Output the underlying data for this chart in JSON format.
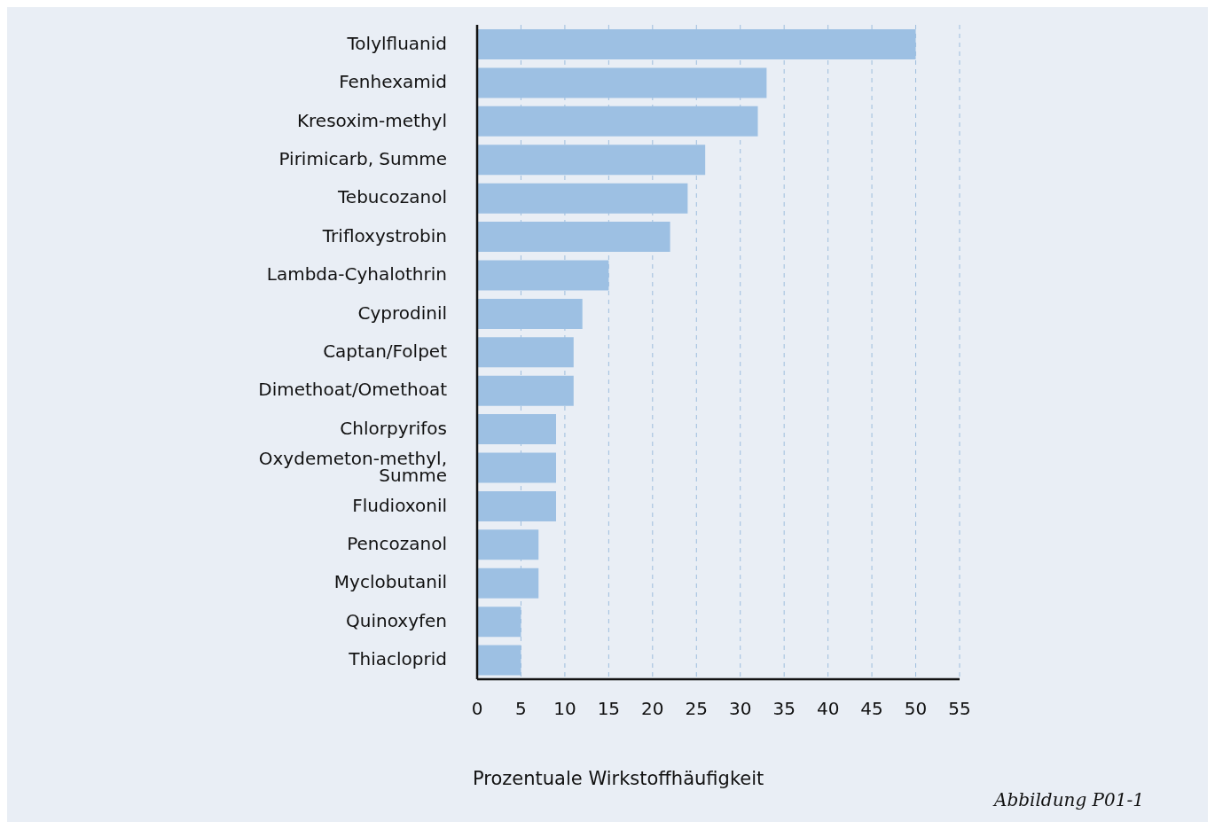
{
  "chart_data": {
    "type": "bar",
    "orientation": "horizontal",
    "xlabel": "Prozentuale Wirkstoffhäufigkeit",
    "categories": [
      "Tolylfluanid",
      "Fenhexamid",
      "Kresoxim-methyl",
      "Pirimicarb, Summe",
      "Tebucozanol",
      "Trifloxystrobin",
      "Lambda-Cyhalothrin",
      "Cyprodinil",
      "Captan/Folpet",
      "Dimethoat/Omethoat",
      "Chlorpyrifos",
      "Oxydemeton-methyl, Summe",
      "Fludioxonil",
      "Pencozanol",
      "Myclobutanil",
      "Quinoxyfen",
      "Thiacloprid"
    ],
    "values": [
      50,
      33,
      32,
      26,
      24,
      22,
      15,
      12,
      11,
      11,
      9,
      9,
      9,
      7,
      7,
      5,
      5
    ],
    "color": "#9dc0e3",
    "xlim": [
      0,
      55
    ],
    "xticks": [
      0,
      5,
      10,
      15,
      20,
      25,
      30,
      35,
      40,
      45,
      50,
      55
    ],
    "grid": "x",
    "annotations": [
      "Abbildung P01-1"
    ]
  }
}
